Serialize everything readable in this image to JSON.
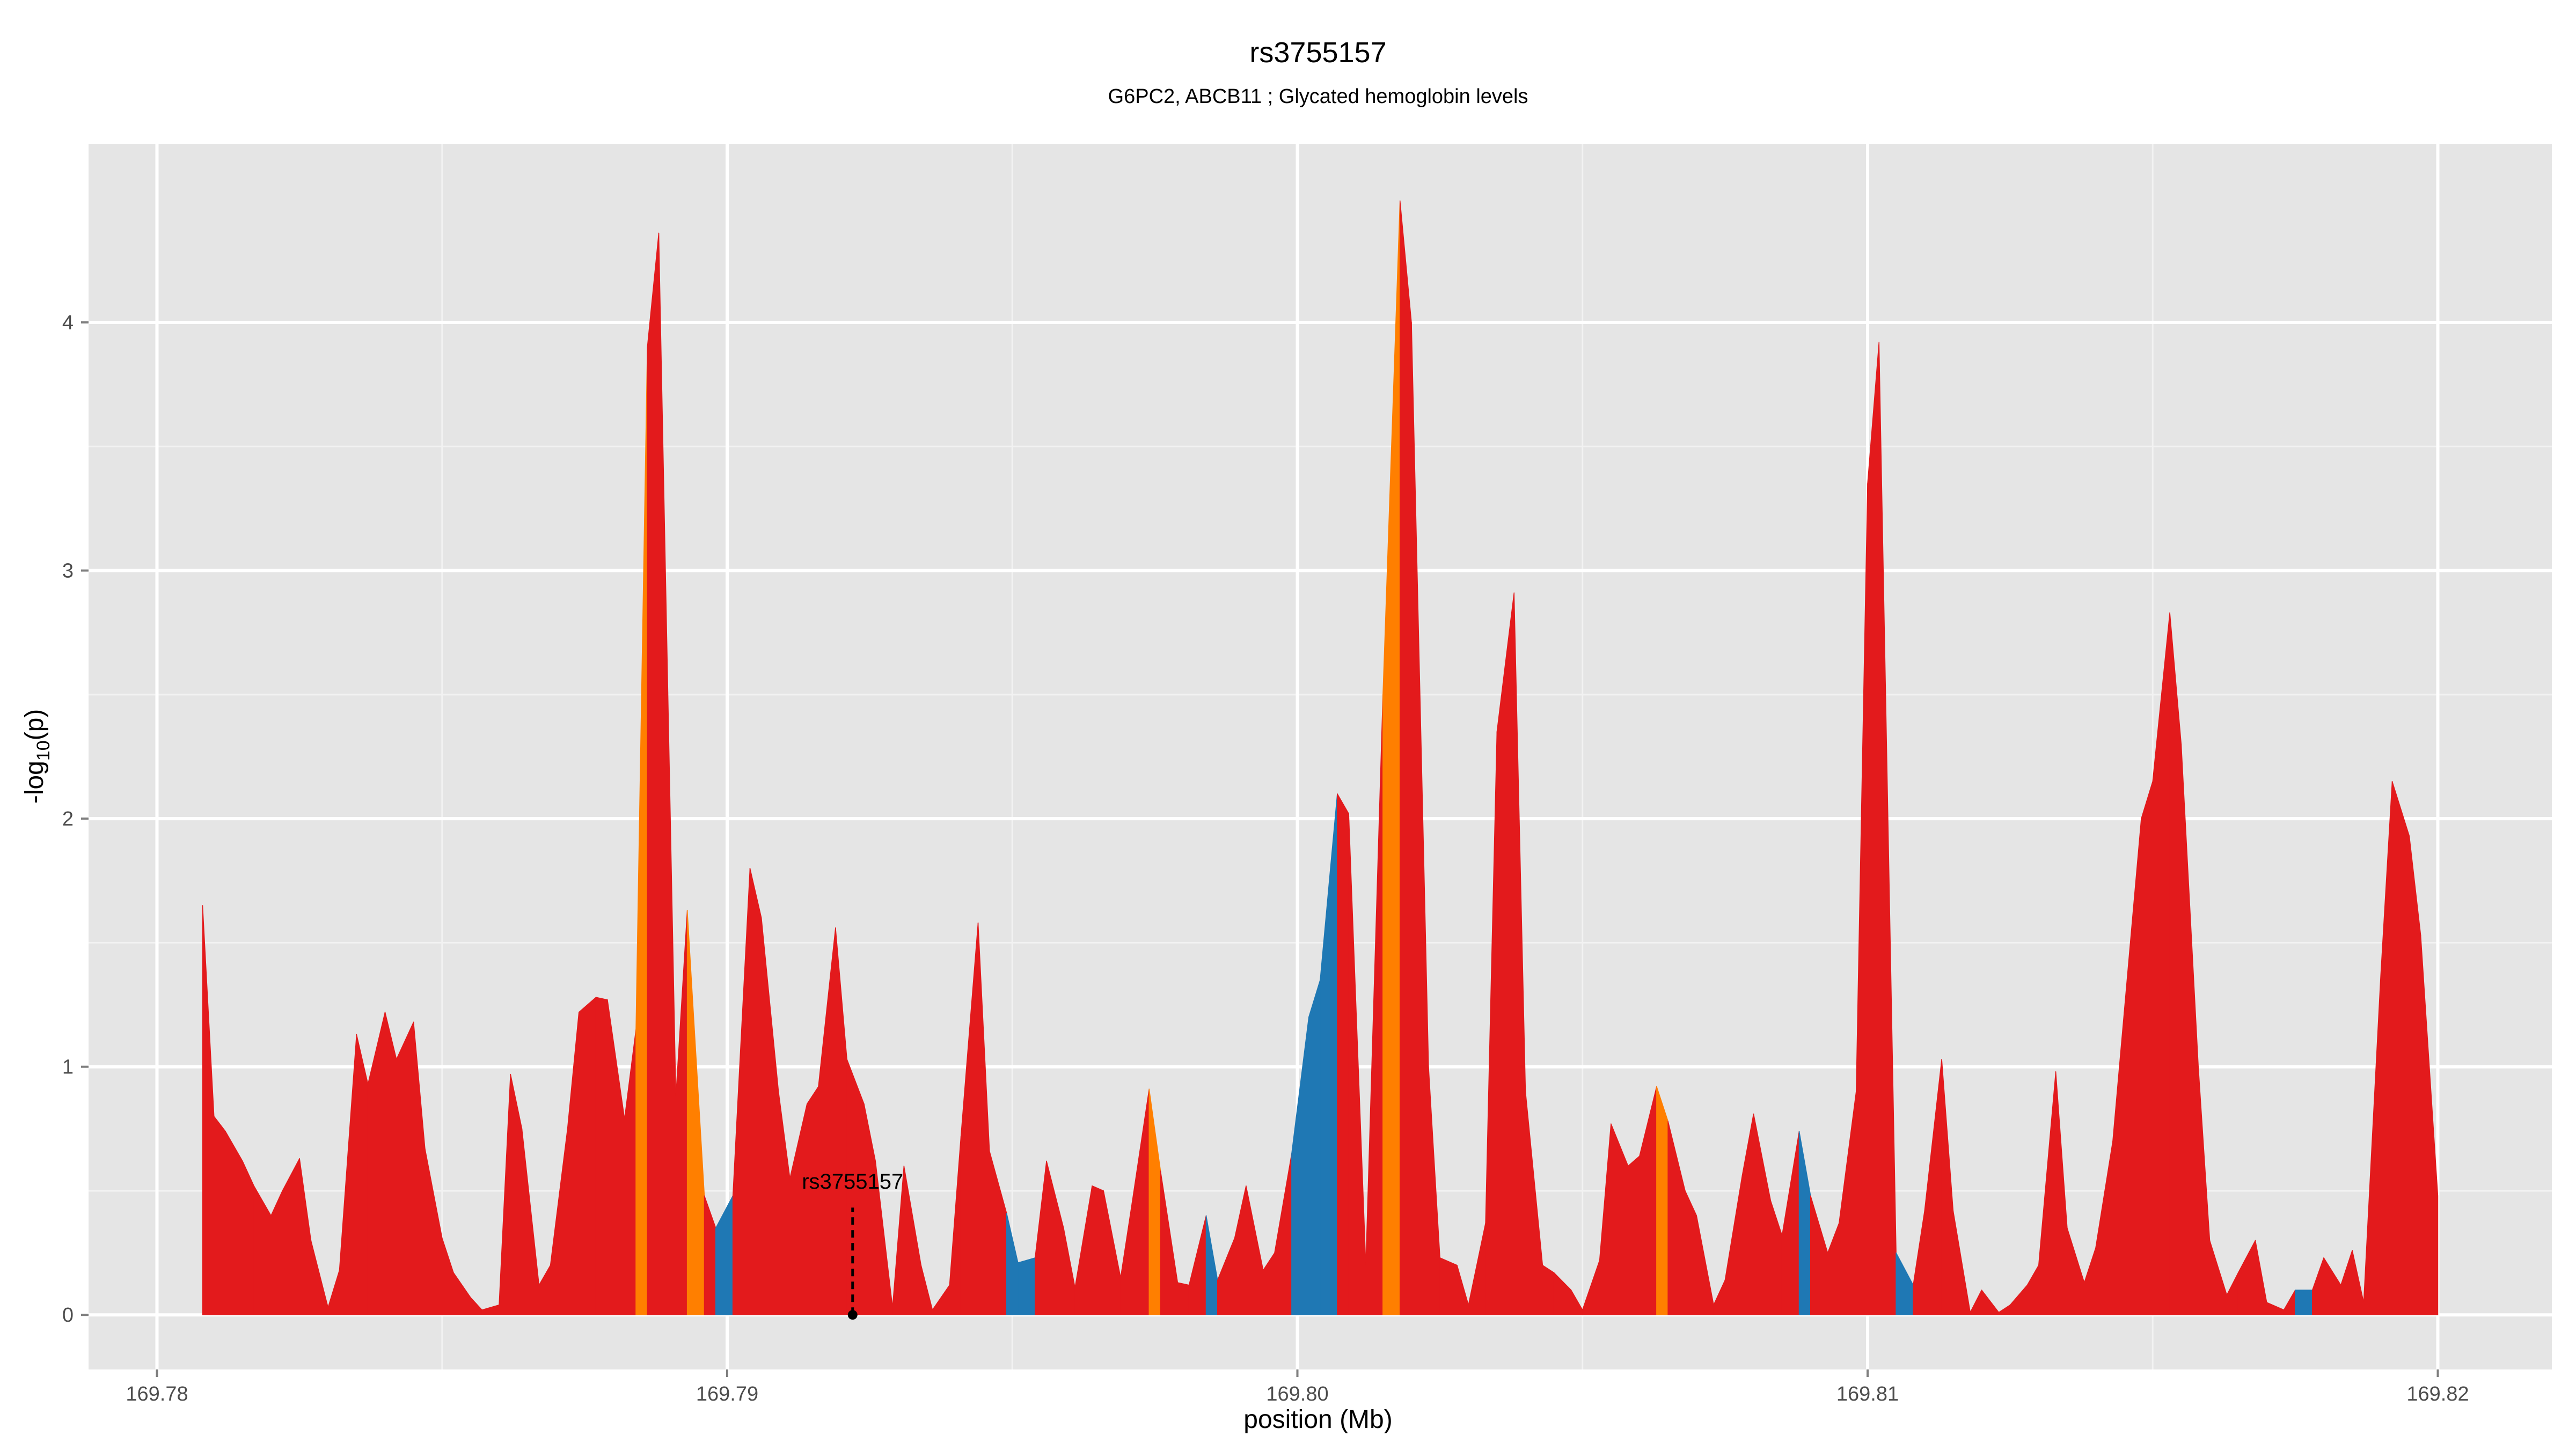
{
  "chart_data": {
    "type": "area",
    "title": "rs3755157",
    "subtitle": "G6PC2, ABCB11 ; Glycated hemoglobin levels",
    "xlabel": "position (Mb)",
    "ylabel_prefix": "-log",
    "ylabel_sub": "10",
    "ylabel_suffix": "(p)",
    "xlim": [
      169.7788,
      169.822
    ],
    "ylim": [
      -0.22,
      4.72
    ],
    "x_ticks": [
      169.78,
      169.79,
      169.8,
      169.81,
      169.82
    ],
    "x_tick_labels": [
      "169.78",
      "169.79",
      "169.80",
      "169.81",
      "169.82"
    ],
    "y_ticks": [
      0,
      1,
      2,
      3,
      4
    ],
    "y_tick_labels": [
      "0",
      "1",
      "2",
      "3",
      "4"
    ],
    "grid": true,
    "colors": {
      "red": "#e31a1c",
      "orange": "#ff7f00",
      "blue": "#1f78b4",
      "panel": "#e5e5e5",
      "grid_major": "#ffffff",
      "grid_minor": "#f2f2f2"
    },
    "annotation": {
      "label": "rs3755157",
      "x": 169.7922,
      "y": 0
    },
    "points": [
      [
        169.7808,
        1.65
      ],
      [
        169.781,
        0.8
      ],
      [
        169.7812,
        0.74
      ],
      [
        169.7815,
        0.62
      ],
      [
        169.7817,
        0.52
      ],
      [
        169.782,
        0.4
      ],
      [
        169.7822,
        0.5
      ],
      [
        169.7825,
        0.63
      ],
      [
        169.7827,
        0.3
      ],
      [
        169.783,
        0.03
      ],
      [
        169.7832,
        0.18
      ],
      [
        169.7835,
        1.13
      ],
      [
        169.7837,
        0.93
      ],
      [
        169.784,
        1.22
      ],
      [
        169.7842,
        1.03
      ],
      [
        169.7845,
        1.18
      ],
      [
        169.7847,
        0.67
      ],
      [
        169.785,
        0.31
      ],
      [
        169.7852,
        0.17
      ],
      [
        169.7855,
        0.07
      ],
      [
        169.7857,
        0.02
      ],
      [
        169.786,
        0.04
      ],
      [
        169.7862,
        0.97
      ],
      [
        169.7864,
        0.75
      ],
      [
        169.7867,
        0.12
      ],
      [
        169.7869,
        0.2
      ],
      [
        169.7872,
        0.75
      ],
      [
        169.7874,
        1.22
      ],
      [
        169.7877,
        1.28
      ],
      [
        169.7879,
        1.27
      ],
      [
        169.7882,
        0.79
      ],
      [
        169.7884,
        1.15
      ],
      [
        169.7886,
        3.9
      ],
      [
        169.7888,
        4.36
      ],
      [
        169.7891,
        0.88
      ],
      [
        169.7893,
        1.63
      ],
      [
        169.7896,
        0.48
      ],
      [
        169.7898,
        0.35
      ],
      [
        169.7901,
        0.48
      ],
      [
        169.7904,
        1.8
      ],
      [
        169.7906,
        1.6
      ],
      [
        169.7909,
        0.9
      ],
      [
        169.7911,
        0.55
      ],
      [
        169.7914,
        0.85
      ],
      [
        169.7916,
        0.92
      ],
      [
        169.7919,
        1.56
      ],
      [
        169.7921,
        1.03
      ],
      [
        169.7924,
        0.85
      ],
      [
        169.7926,
        0.62
      ],
      [
        169.7929,
        0.03
      ],
      [
        169.7931,
        0.6
      ],
      [
        169.7934,
        0.2
      ],
      [
        169.7936,
        0.02
      ],
      [
        169.7939,
        0.12
      ],
      [
        169.7941,
        0.72
      ],
      [
        169.7944,
        1.58
      ],
      [
        169.7946,
        0.66
      ],
      [
        169.7949,
        0.41
      ],
      [
        169.7951,
        0.21
      ],
      [
        169.7954,
        0.23
      ],
      [
        169.7956,
        0.62
      ],
      [
        169.7959,
        0.35
      ],
      [
        169.7961,
        0.11
      ],
      [
        169.7964,
        0.52
      ],
      [
        169.7966,
        0.5
      ],
      [
        169.7969,
        0.15
      ],
      [
        169.7971,
        0.45
      ],
      [
        169.7974,
        0.91
      ],
      [
        169.7976,
        0.58
      ],
      [
        169.7979,
        0.13
      ],
      [
        169.7981,
        0.12
      ],
      [
        169.7984,
        0.4
      ],
      [
        169.7986,
        0.14
      ],
      [
        169.7989,
        0.31
      ],
      [
        169.7991,
        0.52
      ],
      [
        169.7994,
        0.18
      ],
      [
        169.7996,
        0.25
      ],
      [
        169.7999,
        0.65
      ],
      [
        169.8002,
        1.2
      ],
      [
        169.8004,
        1.35
      ],
      [
        169.8007,
        2.1
      ],
      [
        169.8009,
        2.02
      ],
      [
        169.8012,
        0.2
      ],
      [
        169.8015,
        2.5
      ],
      [
        169.8018,
        4.49
      ],
      [
        169.802,
        4.0
      ],
      [
        169.8023,
        1.0
      ],
      [
        169.8025,
        0.23
      ],
      [
        169.8028,
        0.2
      ],
      [
        169.803,
        0.04
      ],
      [
        169.8033,
        0.37
      ],
      [
        169.8035,
        2.35
      ],
      [
        169.8038,
        2.91
      ],
      [
        169.804,
        0.9
      ],
      [
        169.8043,
        0.2
      ],
      [
        169.8045,
        0.17
      ],
      [
        169.8048,
        0.1
      ],
      [
        169.805,
        0.02
      ],
      [
        169.8053,
        0.22
      ],
      [
        169.8055,
        0.77
      ],
      [
        169.8058,
        0.6
      ],
      [
        169.806,
        0.64
      ],
      [
        169.8063,
        0.92
      ],
      [
        169.8065,
        0.78
      ],
      [
        169.8068,
        0.5
      ],
      [
        169.807,
        0.4
      ],
      [
        169.8073,
        0.04
      ],
      [
        169.8075,
        0.14
      ],
      [
        169.8078,
        0.56
      ],
      [
        169.808,
        0.81
      ],
      [
        169.8083,
        0.46
      ],
      [
        169.8085,
        0.32
      ],
      [
        169.8088,
        0.74
      ],
      [
        169.809,
        0.48
      ],
      [
        169.8093,
        0.25
      ],
      [
        169.8095,
        0.37
      ],
      [
        169.8098,
        0.9
      ],
      [
        169.81,
        3.35
      ],
      [
        169.8102,
        3.92
      ],
      [
        169.8105,
        0.25
      ],
      [
        169.8108,
        0.12
      ],
      [
        169.811,
        0.42
      ],
      [
        169.8113,
        1.03
      ],
      [
        169.8115,
        0.42
      ],
      [
        169.8118,
        0.01
      ],
      [
        169.812,
        0.1
      ],
      [
        169.8123,
        0.01
      ],
      [
        169.8125,
        0.04
      ],
      [
        169.8128,
        0.12
      ],
      [
        169.813,
        0.2
      ],
      [
        169.8133,
        0.98
      ],
      [
        169.8135,
        0.35
      ],
      [
        169.8138,
        0.13
      ],
      [
        169.814,
        0.27
      ],
      [
        169.8143,
        0.7
      ],
      [
        169.8145,
        1.22
      ],
      [
        169.8148,
        2.0
      ],
      [
        169.815,
        2.15
      ],
      [
        169.8153,
        2.83
      ],
      [
        169.8155,
        2.3
      ],
      [
        169.8158,
        1.0
      ],
      [
        169.816,
        0.3
      ],
      [
        169.8163,
        0.08
      ],
      [
        169.8165,
        0.17
      ],
      [
        169.8168,
        0.3
      ],
      [
        169.817,
        0.05
      ],
      [
        169.8173,
        0.02
      ],
      [
        169.8175,
        0.1
      ],
      [
        169.8178,
        0.1
      ],
      [
        169.818,
        0.23
      ],
      [
        169.8183,
        0.12
      ],
      [
        169.8185,
        0.26
      ],
      [
        169.8187,
        0.05
      ],
      [
        169.819,
        1.37
      ],
      [
        169.8192,
        2.15
      ],
      [
        169.8195,
        1.93
      ],
      [
        169.8197,
        1.53
      ],
      [
        169.82,
        0.48
      ]
    ],
    "segment_colors": [
      "red",
      "red",
      "red",
      "red",
      "red",
      "red",
      "red",
      "red",
      "red",
      "red",
      "red",
      "red",
      "red",
      "red",
      "red",
      "red",
      "red",
      "red",
      "red",
      "red",
      "red",
      "red",
      "red",
      "red",
      "red",
      "red",
      "red",
      "red",
      "red",
      "red",
      "red",
      "orange",
      "red",
      "red",
      "red",
      "orange",
      "red",
      "blue",
      "red",
      "red",
      "red",
      "red",
      "red",
      "red",
      "red",
      "red",
      "red",
      "red",
      "red",
      "red",
      "red",
      "red",
      "red",
      "red",
      "red",
      "red",
      "red",
      "blue",
      "blue",
      "red",
      "red",
      "red",
      "red",
      "red",
      "red",
      "red",
      "red",
      "orange",
      "red",
      "red",
      "red",
      "blue",
      "red",
      "red",
      "red",
      "red",
      "red",
      "blue",
      "blue",
      "blue",
      "red",
      "red",
      "red",
      "orange",
      "red",
      "red",
      "red",
      "red",
      "red",
      "red",
      "red",
      "red",
      "red",
      "red",
      "red",
      "red",
      "red",
      "red",
      "red",
      "red",
      "red",
      "red",
      "orange",
      "red",
      "red",
      "red",
      "red",
      "red",
      "red",
      "red",
      "red",
      "red",
      "blue",
      "red",
      "red",
      "red",
      "red",
      "red",
      "red",
      "blue",
      "red",
      "red",
      "red",
      "red",
      "red",
      "red",
      "red",
      "red",
      "red",
      "red",
      "red",
      "red",
      "red",
      "red",
      "red",
      "red",
      "red",
      "red",
      "red",
      "red",
      "red",
      "red",
      "red",
      "red",
      "red",
      "red",
      "red",
      "blue",
      "red",
      "red",
      "red",
      "red",
      "red",
      "red",
      "red",
      "red"
    ]
  }
}
